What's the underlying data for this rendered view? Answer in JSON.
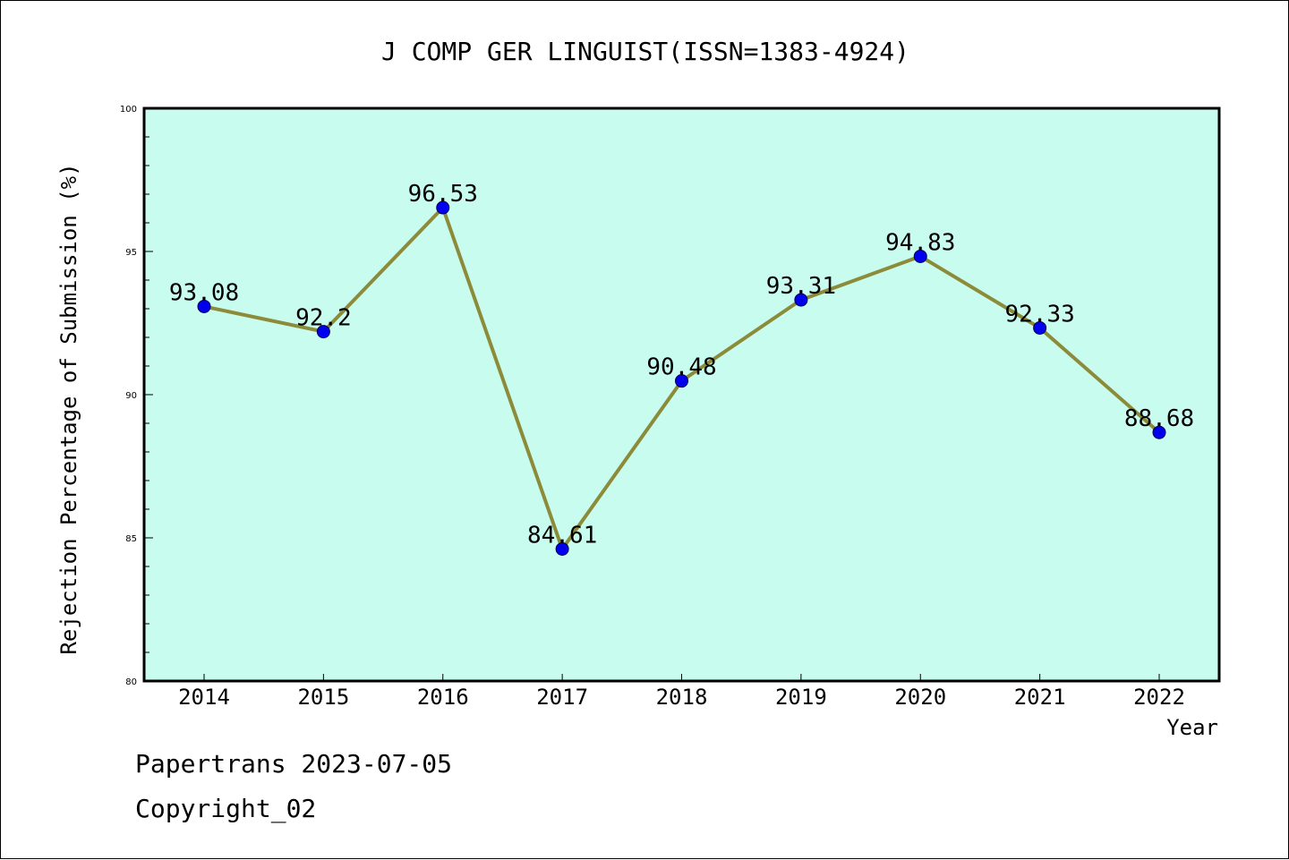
{
  "chart_data": {
    "type": "line",
    "title": "J COMP GER LINGUIST(ISSN=1383-4924)",
    "xlabel": "Year",
    "ylabel": "Rejection Percentage of Submission (%)",
    "categories": [
      "2014",
      "2015",
      "2016",
      "2017",
      "2018",
      "2019",
      "2020",
      "2021",
      "2022"
    ],
    "series": [
      {
        "values": [
          93.08,
          92.2,
          96.53,
          84.61,
          90.48,
          93.31,
          94.83,
          92.33,
          88.68
        ],
        "data_labels": [
          "93.08",
          "92.2",
          "96.53",
          "84.61",
          "90.48",
          "93.31",
          "94.83",
          "92.33",
          "88.68"
        ]
      }
    ],
    "ylim": [
      80,
      100
    ],
    "yticks": [
      "80",
      "85",
      "90",
      "95",
      "100"
    ],
    "grid": false,
    "colors": {
      "plot_background": "#c8fcee",
      "line": "#8b8b3a",
      "marker": "#0000ee"
    }
  },
  "footer": {
    "line1": "Papertrans 2023-07-05",
    "line2": "Copyright_02"
  }
}
